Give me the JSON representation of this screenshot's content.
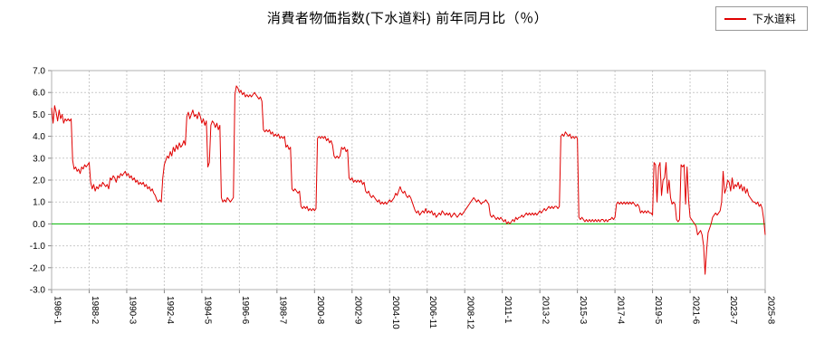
{
  "title": "消費者物価指数(下水道料) 前年同月比（％）",
  "legend": {
    "label": "下水道料",
    "color": "#e00000"
  },
  "chart_data": {
    "type": "line",
    "title": "消費者物価指数(下水道料) 前年同月比（％）",
    "xlabel": "",
    "ylabel": "",
    "ylim": [
      -3.0,
      7.0
    ],
    "y_ticks": [
      7.0,
      6.0,
      5.0,
      4.0,
      3.0,
      2.0,
      1.0,
      0.0,
      -1.0,
      -2.0,
      -3.0
    ],
    "x_unit": "month",
    "x_start": "1986-1",
    "x_end": "2025-8",
    "x_tick_interval_months": 25,
    "x_tick_labels": [
      "1986-1",
      "1988-2",
      "1990-3",
      "1992-4",
      "1994-5",
      "1996-6",
      "1998-7",
      "2000-8",
      "2002-9",
      "2004-10",
      "2006-11",
      "2008-12",
      "2011-1",
      "2013-2",
      "2015-3",
      "2017-4",
      "2019-5",
      "2021-6",
      "2023-7",
      "2025-8"
    ],
    "grid": "dotted",
    "legend_position": "top-right",
    "zero_line_color": "#00b400",
    "grid_color": "#c9c9c9",
    "axis_color": "#888888",
    "border_color": "#b0b0b0",
    "series": [
      {
        "name": "下水道料",
        "color": "#e00000",
        "values": [
          5.3,
          4.6,
          5.4,
          5.1,
          4.7,
          5.2,
          4.8,
          5.0,
          4.6,
          4.8,
          4.7,
          4.8,
          4.7,
          4.8,
          2.9,
          2.5,
          2.6,
          2.4,
          2.5,
          2.3,
          2.6,
          2.5,
          2.7,
          2.6,
          2.7,
          2.8,
          1.9,
          1.6,
          1.8,
          1.5,
          1.7,
          1.6,
          1.8,
          1.7,
          1.9,
          1.8,
          1.7,
          1.8,
          1.6,
          2.1,
          2.0,
          2.2,
          2.1,
          1.9,
          2.2,
          2.1,
          2.3,
          2.2,
          2.3,
          2.4,
          2.2,
          2.3,
          2.1,
          2.2,
          2.0,
          2.1,
          1.9,
          2.0,
          1.8,
          1.9,
          1.8,
          1.9,
          1.7,
          1.8,
          1.6,
          1.7,
          1.5,
          1.6,
          1.4,
          1.3,
          1.1,
          1.0,
          1.1,
          1.0,
          2.1,
          2.7,
          2.9,
          3.1,
          3.0,
          3.3,
          3.1,
          3.5,
          3.3,
          3.6,
          3.4,
          3.7,
          3.5,
          3.6,
          3.8,
          3.6,
          4.9,
          5.1,
          4.8,
          5.0,
          5.2,
          4.9,
          5.0,
          4.8,
          5.1,
          4.9,
          4.6,
          4.8,
          4.5,
          4.7,
          2.6,
          2.8,
          4.5,
          4.7,
          4.6,
          4.4,
          4.6,
          4.3,
          4.5,
          1.2,
          1.0,
          1.1,
          1.0,
          1.2,
          1.1,
          1.0,
          1.1,
          1.2,
          5.9,
          6.3,
          6.2,
          6.0,
          6.1,
          5.9,
          6.0,
          5.8,
          5.9,
          5.8,
          5.9,
          5.8,
          5.9,
          6.0,
          5.9,
          5.8,
          5.7,
          5.8,
          5.6,
          4.3,
          4.2,
          4.3,
          4.2,
          4.3,
          4.1,
          4.2,
          4.0,
          4.1,
          4.0,
          4.1,
          3.9,
          4.0,
          3.9,
          4.0,
          3.5,
          3.6,
          3.4,
          3.5,
          1.6,
          1.5,
          1.6,
          1.5,
          1.4,
          1.5,
          0.8,
          0.7,
          0.8,
          0.7,
          0.8,
          0.6,
          0.7,
          0.6,
          0.7,
          0.6,
          0.7,
          3.9,
          4.0,
          3.9,
          4.0,
          3.9,
          4.0,
          3.8,
          3.9,
          3.7,
          3.8,
          3.6,
          3.1,
          3.0,
          3.1,
          3.0,
          3.1,
          3.5,
          3.4,
          3.5,
          3.3,
          3.4,
          2.1,
          2.0,
          2.1,
          1.9,
          2.0,
          1.9,
          2.0,
          1.9,
          2.0,
          1.8,
          1.9,
          1.5,
          1.4,
          1.5,
          1.3,
          1.2,
          1.3,
          1.2,
          1.1,
          1.0,
          1.1,
          0.9,
          1.0,
          0.9,
          1.0,
          0.9,
          1.0,
          1.1,
          1.0,
          1.1,
          1.2,
          1.4,
          1.3,
          1.5,
          1.7,
          1.5,
          1.4,
          1.5,
          1.3,
          1.2,
          1.3,
          1.2,
          1.0,
          0.8,
          0.6,
          0.5,
          0.6,
          0.4,
          0.5,
          0.6,
          0.5,
          0.7,
          0.5,
          0.6,
          0.5,
          0.6,
          0.4,
          0.5,
          0.3,
          0.4,
          0.5,
          0.4,
          0.6,
          0.5,
          0.4,
          0.5,
          0.4,
          0.5,
          0.3,
          0.4,
          0.5,
          0.4,
          0.3,
          0.4,
          0.5,
          0.4,
          0.5,
          0.6,
          0.7,
          0.8,
          0.9,
          1.0,
          1.1,
          1.2,
          1.1,
          1.0,
          1.1,
          1.0,
          0.9,
          1.0,
          1.0,
          1.1,
          1.0,
          0.9,
          0.4,
          0.3,
          0.4,
          0.3,
          0.2,
          0.3,
          0.2,
          0.3,
          0.2,
          0.1,
          0.2,
          0.0,
          0.1,
          0.0,
          0.1,
          0.2,
          0.1,
          0.3,
          0.2,
          0.3,
          0.3,
          0.4,
          0.3,
          0.4,
          0.5,
          0.4,
          0.5,
          0.4,
          0.5,
          0.4,
          0.5,
          0.4,
          0.5,
          0.6,
          0.5,
          0.6,
          0.7,
          0.6,
          0.7,
          0.8,
          0.7,
          0.8,
          0.7,
          0.8,
          0.8,
          0.7,
          0.8,
          4.0,
          4.1,
          4.0,
          4.2,
          4.1,
          4.0,
          4.1,
          3.9,
          4.0,
          3.9,
          4.0,
          3.9,
          0.3,
          0.2,
          0.3,
          0.2,
          0.1,
          0.2,
          0.1,
          0.2,
          0.1,
          0.2,
          0.1,
          0.2,
          0.1,
          0.2,
          0.1,
          0.2,
          0.2,
          0.1,
          0.2,
          0.1,
          0.2,
          0.2,
          0.3,
          0.2,
          0.3,
          0.9,
          1.0,
          0.9,
          1.0,
          0.9,
          1.0,
          0.9,
          1.0,
          0.9,
          1.0,
          0.9,
          1.0,
          0.9,
          0.8,
          0.9,
          0.8,
          0.5,
          0.6,
          0.5,
          0.6,
          0.5,
          0.6,
          0.5,
          0.5,
          0.4,
          2.8,
          2.7,
          1.0,
          2.6,
          2.8,
          1.3,
          2.0,
          2.1,
          2.8,
          1.4,
          2.0,
          1.2,
          0.9,
          1.0,
          0.9,
          0.2,
          0.1,
          0.2,
          2.7,
          2.6,
          2.7,
          0.9,
          2.6,
          1.1,
          0.3,
          0.2,
          0.1,
          0.0,
          -0.1,
          -0.5,
          -0.4,
          -0.3,
          -0.5,
          -1.0,
          -2.3,
          -1.2,
          -0.4,
          -0.2,
          0.0,
          0.3,
          0.4,
          0.5,
          0.4,
          0.5,
          0.6,
          1.0,
          2.4,
          1.4,
          1.6,
          2.0,
          1.9,
          1.5,
          2.1,
          1.6,
          1.8,
          1.7,
          1.9,
          1.6,
          1.8,
          1.5,
          1.7,
          1.4,
          1.6,
          1.3,
          1.2,
          1.1,
          1.0,
          1.0,
          0.9,
          1.0,
          0.8,
          0.9,
          0.7,
          0.2,
          -0.5
        ]
      }
    ]
  }
}
